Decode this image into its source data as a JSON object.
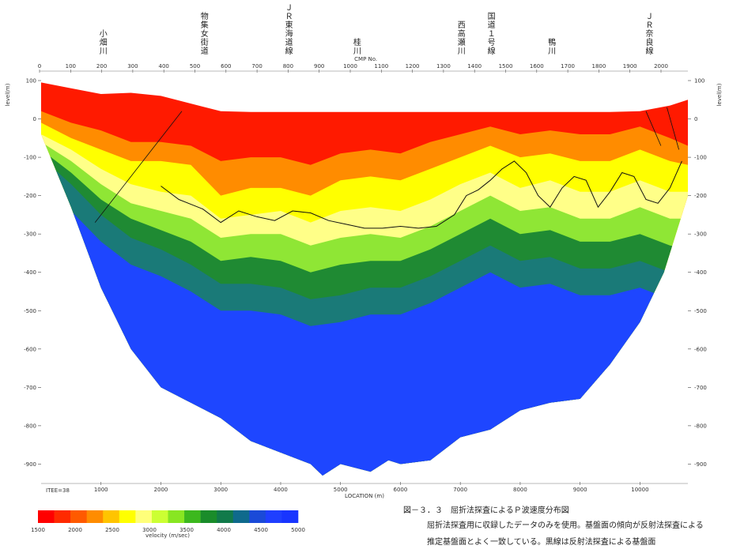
{
  "chart_data": {
    "type": "heatmap",
    "title": "図－３．３　屈折法探査によるＰ波速度分布図",
    "subtitle_lines": [
      "屈折法探査用に収録したデータのみを使用。基盤面の傾向が反射法探査による",
      "推定基盤面とよく一致している。黒線は反射法探査による基盤面"
    ],
    "xlabel": "LOCATION (m)",
    "ylabel_left": "level(m)",
    "ylabel_right": "level(m)",
    "cmp_label": "CMP No.",
    "site_label": "ITEE=38",
    "x_ticks": [
      1000,
      2000,
      3000,
      4000,
      5000,
      6000,
      7000,
      8000,
      9000,
      10000
    ],
    "cmp_ticks": [
      0,
      100,
      200,
      300,
      400,
      500,
      600,
      700,
      800,
      900,
      1000,
      1100,
      1200,
      1300,
      1400,
      1500,
      1600,
      1700,
      1800,
      1900,
      2000
    ],
    "y_ticks": [
      100,
      0,
      -100,
      -200,
      -300,
      -400,
      -500,
      -600,
      -700,
      -800,
      -900
    ],
    "xlim": [
      0,
      10800
    ],
    "ylim": [
      -930,
      100
    ],
    "places": [
      {
        "name": "小畑川",
        "x": 1040
      },
      {
        "name": "物集女街道",
        "x": 2730
      },
      {
        "name": "ＪＲ東海道線",
        "x": 4140
      },
      {
        "name": "桂川",
        "x": 5280
      },
      {
        "name": "西高瀬川",
        "x": 7020
      },
      {
        "name": "国道１号線",
        "x": 7520
      },
      {
        "name": "鴨川",
        "x": 8530
      },
      {
        "name": "ＪＲ奈良線",
        "x": 10160
      }
    ],
    "colorbar": {
      "label": "velocity (m/sec)",
      "ticks": [
        1500,
        2000,
        2500,
        3000,
        3500,
        4000,
        4500,
        5000
      ],
      "colors": [
        "#ff0000",
        "#ff2a00",
        "#ff5a00",
        "#ff8c00",
        "#ffc400",
        "#ffff00",
        "#ffff7a",
        "#ccff33",
        "#88e622",
        "#3cb81e",
        "#1a8c2a",
        "#117a4a",
        "#0f6a8c",
        "#1a4ad8",
        "#1f3fff",
        "#1835ff"
      ]
    },
    "surface_profile": {
      "x": [
        0,
        500,
        1000,
        1500,
        2000,
        2500,
        3000,
        3500,
        4000,
        4500,
        5000,
        5500,
        6000,
        6500,
        7000,
        7500,
        8000,
        8500,
        9000,
        9500,
        10000,
        10500,
        10800
      ],
      "y": [
        95,
        80,
        65,
        68,
        60,
        40,
        20,
        18,
        18,
        18,
        18,
        18,
        18,
        18,
        18,
        18,
        18,
        18,
        18,
        18,
        20,
        35,
        50
      ]
    },
    "bottom_profile": {
      "x": [
        0,
        500,
        1000,
        1500,
        2000,
        2500,
        3000,
        3500,
        4000,
        4500,
        4700,
        5000,
        5500,
        5800,
        6000,
        6500,
        7000,
        7500,
        8000,
        8500,
        9000,
        9500,
        10000,
        10400,
        10800
      ],
      "y": [
        -40,
        -230,
        -440,
        -600,
        -700,
        -740,
        -780,
        -840,
        -870,
        -900,
        -930,
        -900,
        -920,
        -890,
        -900,
        -890,
        -830,
        -810,
        -760,
        -740,
        -730,
        -640,
        -530,
        -400,
        -200
      ]
    },
    "layers": [
      {
        "name": "1500-2000",
        "x": [
          0,
          500,
          1000,
          1500,
          2000,
          2500,
          3000,
          3500,
          4000,
          4500,
          5000,
          5500,
          6000,
          6500,
          7000,
          7500,
          8000,
          8500,
          9000,
          9500,
          10000,
          10500,
          10800
        ],
        "y": [
          20,
          -10,
          -30,
          -60,
          -60,
          -70,
          -110,
          -100,
          -100,
          -120,
          -90,
          -80,
          -90,
          -60,
          -40,
          -20,
          -40,
          -30,
          -40,
          -40,
          -20,
          -50,
          -70
        ]
      },
      {
        "name": "2000-2500",
        "x": [
          0,
          500,
          1000,
          1500,
          2000,
          2500,
          3000,
          3500,
          4000,
          4500,
          5000,
          5500,
          6000,
          6500,
          7000,
          7500,
          8000,
          8500,
          9000,
          9500,
          10000,
          10500,
          10800
        ],
        "y": [
          -10,
          -50,
          -80,
          -110,
          -110,
          -120,
          -200,
          -180,
          -180,
          -200,
          -160,
          -150,
          -160,
          -130,
          -100,
          -70,
          -100,
          -90,
          -110,
          -110,
          -80,
          -110,
          -120
        ]
      },
      {
        "name": "2500-3000",
        "x": [
          0,
          500,
          1000,
          1500,
          2000,
          2500,
          3000,
          3500,
          4000,
          4500,
          5000,
          5500,
          6000,
          6500,
          7000,
          7500,
          8000,
          8500,
          9000,
          9500,
          10000,
          10500,
          10800
        ],
        "y": [
          -40,
          -80,
          -130,
          -170,
          -190,
          -200,
          -260,
          -250,
          -240,
          -270,
          -240,
          -230,
          -240,
          -210,
          -170,
          -140,
          -180,
          -160,
          -190,
          -190,
          -160,
          -190,
          -190
        ]
      },
      {
        "name": "3000-3500",
        "x": [
          0,
          500,
          1000,
          1500,
          2000,
          2500,
          3000,
          3500,
          4000,
          4500,
          5000,
          5500,
          6000,
          6500,
          7000,
          7500,
          8000,
          8500,
          9000,
          9500,
          10000,
          10500,
          10800
        ],
        "y": [
          -60,
          -110,
          -170,
          -220,
          -240,
          -260,
          -310,
          -300,
          -300,
          -330,
          -310,
          -300,
          -310,
          -280,
          -240,
          -200,
          -240,
          -230,
          -260,
          -260,
          -230,
          -260,
          -260
        ]
      },
      {
        "name": "3500-4000",
        "x": [
          0,
          500,
          1000,
          1500,
          2000,
          2500,
          3000,
          3500,
          4000,
          4500,
          5000,
          5500,
          6000,
          6500,
          7000,
          7500,
          8000,
          8500,
          9000,
          9500,
          10000,
          10500,
          10800
        ],
        "y": [
          -80,
          -140,
          -210,
          -260,
          -290,
          -320,
          -370,
          -360,
          -370,
          -400,
          -380,
          -370,
          -370,
          -340,
          -300,
          -260,
          -300,
          -290,
          -320,
          -320,
          -300,
          -330,
          -340
        ]
      },
      {
        "name": "4000-4500",
        "x": [
          0,
          500,
          1000,
          1500,
          2000,
          2500,
          3000,
          3500,
          4000,
          4500,
          5000,
          5500,
          6000,
          6500,
          7000,
          7500,
          8000,
          8500,
          9000,
          9500,
          10000,
          10500,
          10800
        ],
        "y": [
          -100,
          -170,
          -250,
          -310,
          -340,
          -380,
          -430,
          -430,
          -440,
          -470,
          -460,
          -440,
          -440,
          -410,
          -370,
          -330,
          -370,
          -360,
          -390,
          -390,
          -370,
          -400,
          -400
        ]
      }
    ],
    "basement_line": {
      "x": [
        2000,
        2300,
        2700,
        3000,
        3300,
        3600,
        3900,
        4200,
        4500,
        4800,
        5100,
        5400,
        5700,
        6000,
        6300,
        6600,
        6900,
        7100,
        7300,
        7500,
        7700,
        7900,
        8100,
        8300,
        8500,
        8700,
        8900,
        9100,
        9300,
        9500,
        9700,
        9900,
        10100,
        10300,
        10500,
        10700
      ],
      "y": [
        -175,
        -210,
        -235,
        -270,
        -240,
        -255,
        -265,
        -240,
        -245,
        -265,
        -275,
        -285,
        -285,
        -280,
        -285,
        -280,
        -250,
        -200,
        -185,
        -160,
        -130,
        -110,
        -140,
        -200,
        -230,
        -180,
        -150,
        -160,
        -230,
        -190,
        -140,
        -150,
        -210,
        -220,
        -180,
        -110
      ]
    },
    "lines": [
      {
        "x": [
          900,
          2350
        ],
        "y": [
          -270,
          20
        ]
      },
      {
        "x": [
          10100,
          10350
        ],
        "y": [
          20,
          -70
        ]
      },
      {
        "x": [
          10450,
          10650
        ],
        "y": [
          30,
          -80
        ]
      }
    ]
  }
}
